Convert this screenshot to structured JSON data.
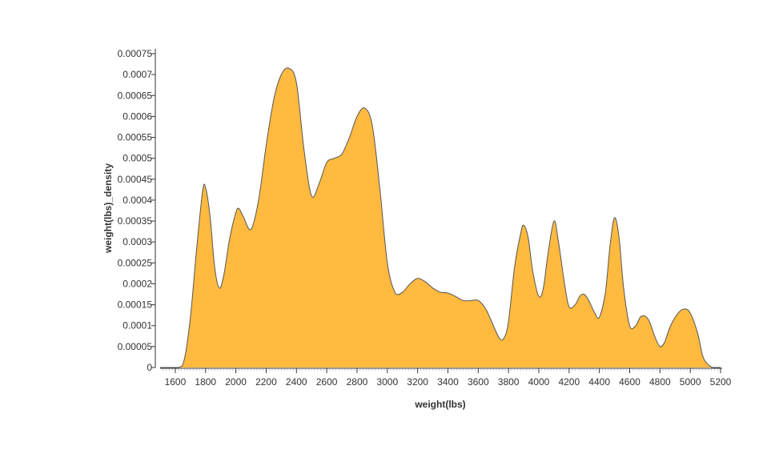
{
  "chart_data": {
    "type": "area",
    "xlabel": "weight(lbs)",
    "ylabel": "weight(lbs)_density",
    "xlim": [
      1500,
      5200
    ],
    "ylim": [
      0,
      0.00075
    ],
    "grid": false,
    "legend": "none",
    "fill_color": "#ffba3f",
    "line_color": "#555555",
    "x_ticks": [
      1600,
      1800,
      2000,
      2200,
      2400,
      2600,
      2800,
      3000,
      3200,
      3400,
      3600,
      3800,
      4000,
      4200,
      4400,
      4600,
      4800,
      5000,
      5200
    ],
    "x_tick_labels": [
      "1600",
      "1800",
      "2000",
      "2200",
      "2400",
      "2600",
      "2800",
      "3000",
      "3200",
      "3400",
      "3600",
      "3800",
      "4000",
      "4200",
      "4400",
      "4600",
      "4800",
      "5000",
      "5200"
    ],
    "y_ticks": [
      0,
      5e-05,
      0.0001,
      0.00015,
      0.0002,
      0.00025,
      0.0003,
      0.00035,
      0.0004,
      0.00045,
      0.0005,
      0.00055,
      0.0006,
      0.00065,
      0.0007,
      0.00075
    ],
    "y_tick_labels": [
      "0",
      "0.00005",
      "0.0001",
      "0.00015",
      "0.0002",
      "0.00025",
      "0.0003",
      "0.00035",
      "0.0004",
      "0.00045",
      "0.0005",
      "0.00055",
      "0.0006",
      "0.00065",
      "0.0007",
      "0.00075"
    ],
    "points": [
      [
        1500,
        0
      ],
      [
        1620,
        0
      ],
      [
        1660,
        2e-05
      ],
      [
        1700,
        0.00012
      ],
      [
        1740,
        0.00028
      ],
      [
        1780,
        0.00042
      ],
      [
        1800,
        0.00043
      ],
      [
        1830,
        0.00036
      ],
      [
        1860,
        0.00024
      ],
      [
        1890,
        0.00019
      ],
      [
        1920,
        0.00022
      ],
      [
        1960,
        0.00031
      ],
      [
        2000,
        0.00037
      ],
      [
        2020,
        0.00038
      ],
      [
        2050,
        0.00036
      ],
      [
        2100,
        0.00033
      ],
      [
        2150,
        0.0004
      ],
      [
        2200,
        0.00053
      ],
      [
        2250,
        0.00064
      ],
      [
        2300,
        0.0007
      ],
      [
        2350,
        0.000715
      ],
      [
        2400,
        0.00068
      ],
      [
        2450,
        0.00052
      ],
      [
        2500,
        0.00041
      ],
      [
        2550,
        0.00044
      ],
      [
        2600,
        0.00049
      ],
      [
        2650,
        0.0005
      ],
      [
        2700,
        0.00051
      ],
      [
        2750,
        0.00055
      ],
      [
        2800,
        0.0006
      ],
      [
        2850,
        0.00062
      ],
      [
        2900,
        0.00058
      ],
      [
        2950,
        0.00043
      ],
      [
        3000,
        0.00025
      ],
      [
        3050,
        0.00018
      ],
      [
        3100,
        0.00018
      ],
      [
        3150,
        0.0002
      ],
      [
        3200,
        0.000213
      ],
      [
        3250,
        0.000205
      ],
      [
        3300,
        0.00019
      ],
      [
        3350,
        0.00018
      ],
      [
        3400,
        0.000178
      ],
      [
        3450,
        0.00017
      ],
      [
        3500,
        0.00016
      ],
      [
        3550,
        0.00016
      ],
      [
        3600,
        0.00016
      ],
      [
        3650,
        0.00014
      ],
      [
        3700,
        0.0001
      ],
      [
        3740,
        7e-05
      ],
      [
        3770,
        7e-05
      ],
      [
        3800,
        0.00011
      ],
      [
        3840,
        0.00024
      ],
      [
        3880,
        0.00032
      ],
      [
        3900,
        0.00034
      ],
      [
        3930,
        0.00031
      ],
      [
        3960,
        0.00023
      ],
      [
        4000,
        0.00017
      ],
      [
        4030,
        0.00019
      ],
      [
        4060,
        0.00027
      ],
      [
        4100,
        0.00035
      ],
      [
        4130,
        0.0003
      ],
      [
        4170,
        0.0002
      ],
      [
        4200,
        0.000145
      ],
      [
        4240,
        0.00015
      ],
      [
        4270,
        0.00017
      ],
      [
        4300,
        0.000175
      ],
      [
        4330,
        0.00016
      ],
      [
        4370,
        0.00013
      ],
      [
        4400,
        0.00012
      ],
      [
        4440,
        0.00018
      ],
      [
        4470,
        0.00029
      ],
      [
        4500,
        0.000358
      ],
      [
        4530,
        0.00031
      ],
      [
        4560,
        0.00019
      ],
      [
        4600,
        0.0001
      ],
      [
        4640,
        0.0001
      ],
      [
        4670,
        0.00012
      ],
      [
        4700,
        0.000123
      ],
      [
        4730,
        0.00011
      ],
      [
        4770,
        7e-05
      ],
      [
        4800,
        5e-05
      ],
      [
        4830,
        6e-05
      ],
      [
        4870,
        0.0001
      ],
      [
        4920,
        0.00013
      ],
      [
        4960,
        0.00014
      ],
      [
        5000,
        0.00013
      ],
      [
        5050,
        8e-05
      ],
      [
        5080,
        3e-05
      ],
      [
        5110,
        1e-05
      ],
      [
        5150,
        0
      ],
      [
        5200,
        0
      ]
    ]
  }
}
